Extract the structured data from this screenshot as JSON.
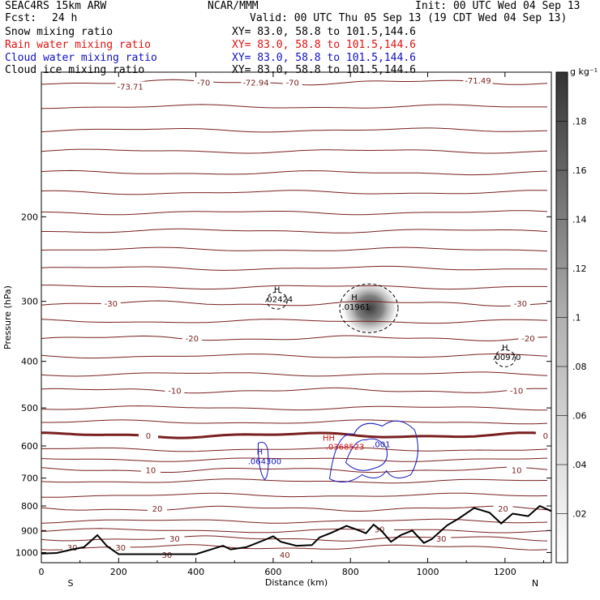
{
  "header": {
    "run": "SEAC4RS 15km ARW",
    "org": "NCAR/MMM",
    "init": "Init: 00 UTC Wed 04 Sep 13",
    "fcst_label": "Fcst:",
    "fcst_value": "24 h",
    "valid": "Valid: 00 UTC Thu 05 Sep 13 (19 CDT Wed 04 Sep 13)"
  },
  "fields": [
    {
      "name": "Snow mixing ratio",
      "xy": "XY=  83.0, 58.8 to 101.5,144.6",
      "color": "#000000"
    },
    {
      "name": "Rain water mixing ratio",
      "xy": "XY=  83.0, 58.8 to 101.5,144.6",
      "color": "#e01010"
    },
    {
      "name": "Cloud water mixing ratio",
      "xy": "XY=  83.0, 58.8 to 101.5,144.6",
      "color": "#1010c0"
    },
    {
      "name": "Cloud ice mixing ratio",
      "xy": "XY=  83.0, 58.8 to 101.5,144.6",
      "color": "#000000"
    }
  ],
  "chart_data": {
    "type": "cross-section contour",
    "xlabel": "Distance (km)",
    "ylabel": "Pressure (hPa)",
    "xlim": [
      0,
      1320
    ],
    "ylim": [
      1050,
      100
    ],
    "y_scale": "log",
    "x_ticks": [
      0,
      200,
      400,
      600,
      800,
      1000,
      1200
    ],
    "y_ticks": [
      200,
      300,
      400,
      500,
      600,
      700,
      800,
      900,
      1000
    ],
    "left_end_label": "S",
    "right_end_label": "N",
    "colorbar": {
      "unit": "g kg⁻¹",
      "ticks": [
        ".02",
        ".04",
        ".06",
        ".08",
        ".1",
        ".12",
        ".14",
        ".16",
        ".18"
      ],
      "min": 0.0,
      "max": 0.2
    },
    "temperature_contours": [
      {
        "label": "-70",
        "p": 105,
        "lbl_x": [
          420,
          650
        ]
      },
      {
        "label": "-30",
        "p": 303,
        "lbl_x": [
          180,
          1240
        ]
      },
      {
        "label": "-20",
        "p": 358,
        "lbl_x": [
          390,
          1260
        ]
      },
      {
        "label": "-10",
        "p": 460,
        "lbl_x": [
          345,
          1230
        ]
      },
      {
        "label": "0",
        "p": 570,
        "lbl_x": [
          277,
          1305
        ]
      },
      {
        "label": "10",
        "p": 673,
        "lbl_x": [
          283,
          1230
        ]
      },
      {
        "label": "20",
        "p": 810,
        "lbl_x": [
          300,
          1195
        ]
      },
      {
        "label": "30",
        "p": 935,
        "lbl_x": [
          345,
          1035
        ]
      },
      {
        "label": "30",
        "p": 975,
        "lbl_x": [
          80,
          205
        ]
      }
    ],
    "temperature_labels_extra": [
      {
        "label": "-73.71",
        "x": 230,
        "p": 107
      },
      {
        "label": "-72.94",
        "x": 555,
        "p": 105
      },
      {
        "label": "-71.49",
        "x": 1130,
        "p": 104
      },
      {
        "label": "30",
        "x": 325,
        "p": 1010
      },
      {
        "label": "30",
        "x": 875,
        "p": 893
      },
      {
        "label": "40",
        "x": 630,
        "p": 1010
      }
    ],
    "terrain": {
      "distance_km": [
        0,
        40,
        80,
        110,
        145,
        170,
        200,
        300,
        400,
        470,
        490,
        530,
        580,
        600,
        620,
        660,
        700,
        720,
        750,
        790,
        820,
        840,
        860,
        880,
        905,
        930,
        960,
        990,
        1010,
        1050,
        1080,
        1120,
        1160,
        1190,
        1220,
        1260,
        1290,
        1320
      ],
      "pressure_hPa": [
        1005,
        1002,
        985,
        975,
        920,
        970,
        1008,
        1008,
        1008,
        968,
        985,
        975,
        940,
        925,
        950,
        968,
        965,
        930,
        910,
        880,
        898,
        912,
        875,
        900,
        950,
        920,
        900,
        955,
        938,
        878,
        850,
        808,
        826,
        870,
        830,
        840,
        800,
        820
      ]
    },
    "snow_maxima": [
      {
        "label": "H",
        "value": ".02424",
        "x": 610,
        "p": 292
      },
      {
        "label": "H",
        "value": ".01961",
        "x": 810,
        "p": 303
      },
      {
        "label": "H",
        "value": ".00970",
        "x": 1200,
        "p": 385
      }
    ],
    "snow_shading": {
      "center_x": 850,
      "center_p": 310,
      "max": 0.17
    },
    "rain_maxima": [
      {
        "label": "HH",
        "value": ".0368523",
        "x": 765,
        "p": 597
      }
    ],
    "cloud_water_maxima": [
      {
        "label": "H",
        "value": ".064300",
        "x": 578,
        "p": 640
      },
      {
        "label": "",
        "value": ".001",
        "x": 880,
        "p": 590
      }
    ]
  }
}
